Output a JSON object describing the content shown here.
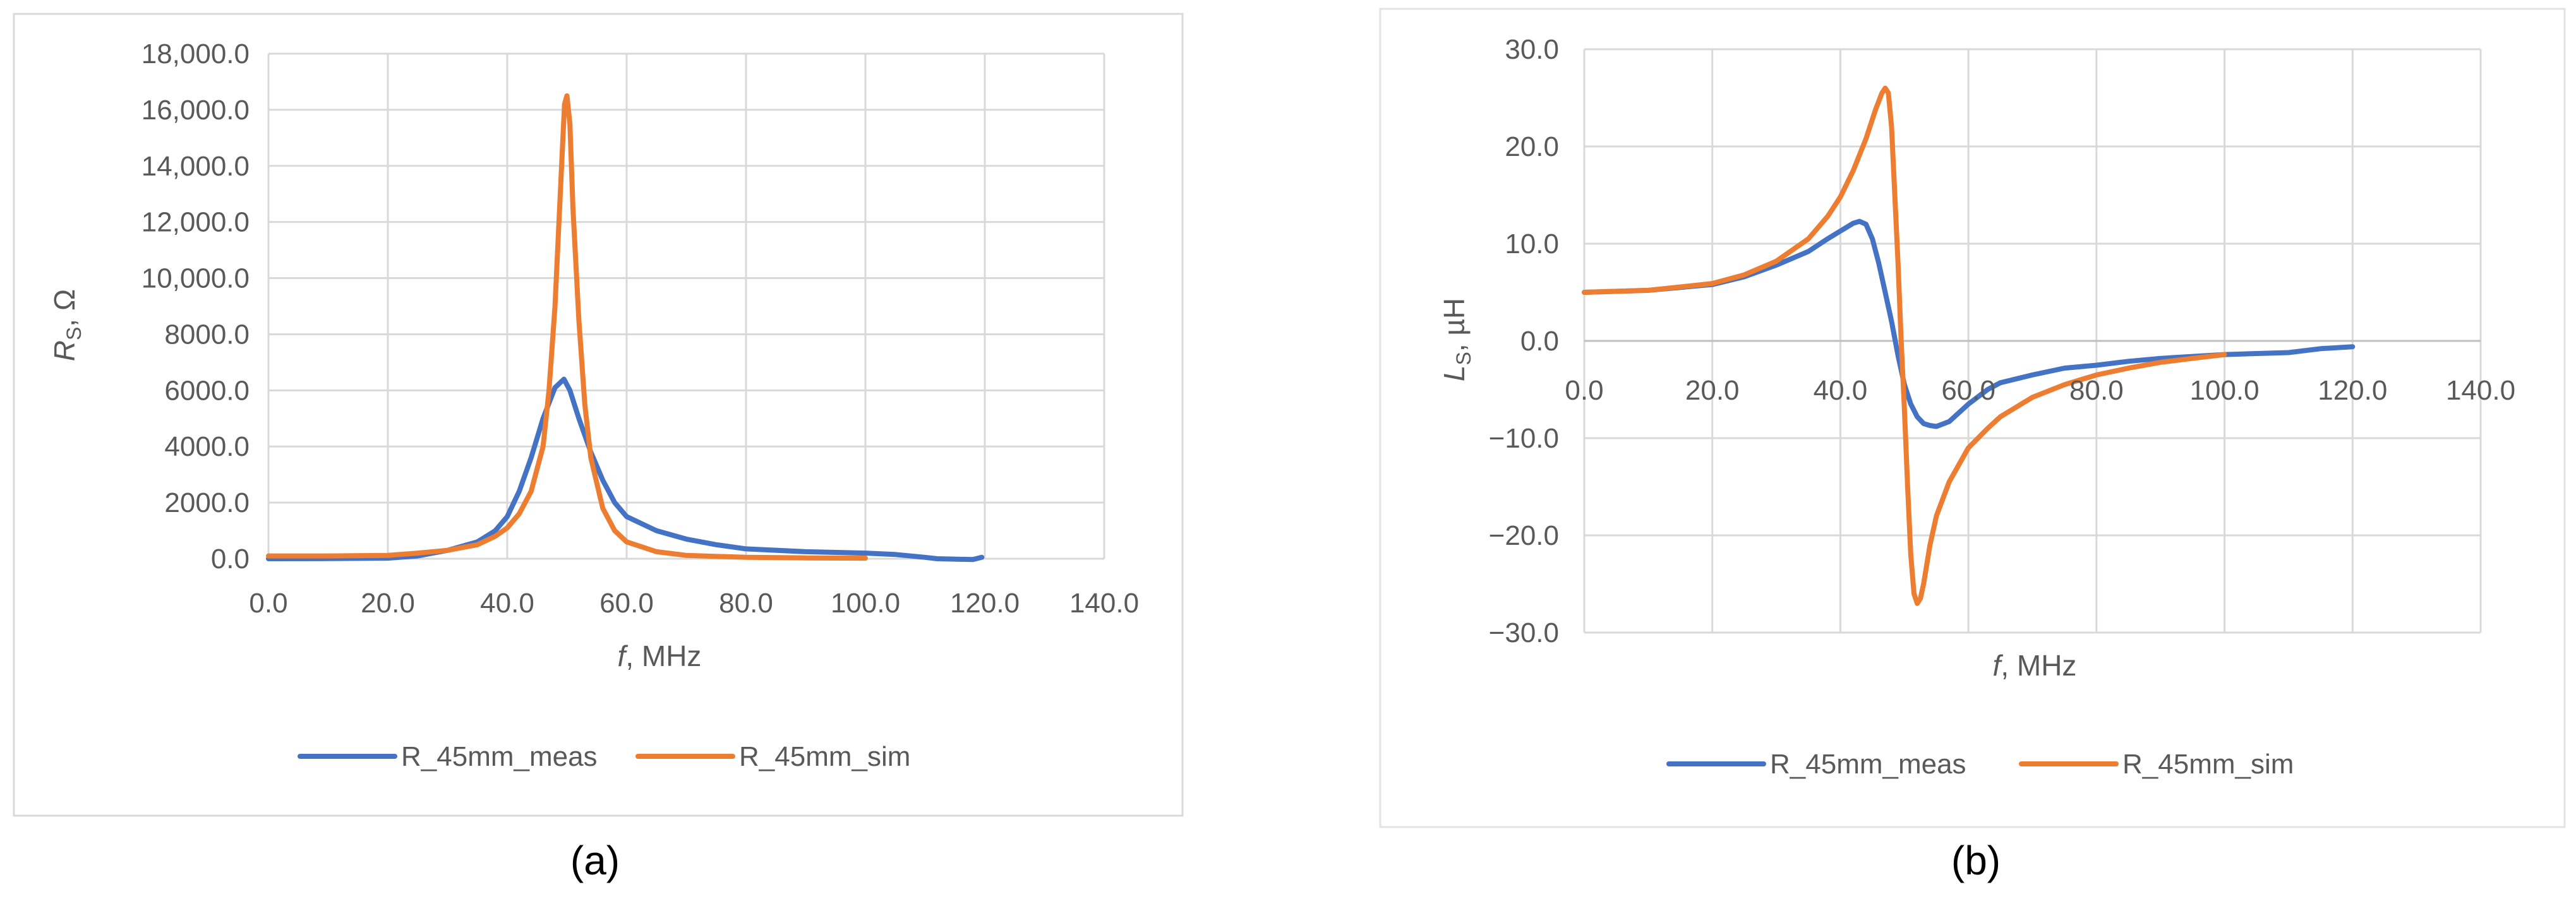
{
  "panels": [
    {
      "label": "(a)"
    },
    {
      "label": "(b)"
    }
  ],
  "chart_data": [
    {
      "type": "line",
      "panel": "(a)",
      "xlabel": "f, MHz",
      "ylabel_main": "R",
      "ylabel_sub": "S",
      "ylabel_unit": ", Ω",
      "xlim": [
        0,
        140
      ],
      "ylim": [
        0,
        18000
      ],
      "xticks": [
        0,
        20,
        40,
        60,
        80,
        100,
        120,
        140
      ],
      "xtick_labels": [
        "0.0",
        "20.0",
        "40.0",
        "60.0",
        "80.0",
        "100.0",
        "120.0",
        "140.0"
      ],
      "yticks": [
        0,
        2000,
        4000,
        6000,
        8000,
        10000,
        12000,
        14000,
        16000,
        18000
      ],
      "ytick_labels": [
        "0.0",
        "2000.0",
        "4000.0",
        "6000.0",
        "8000.0",
        "10,000.0",
        "12,000.0",
        "14,000.0",
        "16,000.0",
        "18,000.0"
      ],
      "grid": true,
      "legend_position": "bottom",
      "series": [
        {
          "name": "R_45mm_meas",
          "color": "#4472C4",
          "points": [
            [
              0,
              0
            ],
            [
              10,
              5
            ],
            [
              20,
              20
            ],
            [
              25,
              100
            ],
            [
              30,
              300
            ],
            [
              35,
              600
            ],
            [
              38,
              1000
            ],
            [
              40,
              1500
            ],
            [
              42,
              2400
            ],
            [
              44,
              3600
            ],
            [
              46,
              5000
            ],
            [
              48,
              6100
            ],
            [
              49.5,
              6400
            ],
            [
              50.5,
              6000
            ],
            [
              52,
              5000
            ],
            [
              54,
              3800
            ],
            [
              56,
              2800
            ],
            [
              58,
              2000
            ],
            [
              60,
              1500
            ],
            [
              65,
              1000
            ],
            [
              70,
              700
            ],
            [
              75,
              500
            ],
            [
              80,
              350
            ],
            [
              90,
              250
            ],
            [
              100,
              200
            ],
            [
              105,
              150
            ],
            [
              110,
              50
            ],
            [
              112,
              0
            ],
            [
              118,
              -30
            ],
            [
              119.5,
              50
            ]
          ]
        },
        {
          "name": "R_45mm_sim",
          "color": "#ED7D31",
          "points": [
            [
              0,
              100
            ],
            [
              10,
              100
            ],
            [
              20,
              120
            ],
            [
              25,
              200
            ],
            [
              30,
              300
            ],
            [
              35,
              500
            ],
            [
              38,
              800
            ],
            [
              40,
              1100
            ],
            [
              42,
              1600
            ],
            [
              44,
              2400
            ],
            [
              46,
              4000
            ],
            [
              47,
              6000
            ],
            [
              48,
              9000
            ],
            [
              49,
              13500
            ],
            [
              49.6,
              16200
            ],
            [
              50,
              16500
            ],
            [
              50.5,
              15500
            ],
            [
              51,
              12500
            ],
            [
              52,
              8500
            ],
            [
              53,
              5500
            ],
            [
              54,
              3600
            ],
            [
              56,
              1800
            ],
            [
              58,
              1000
            ],
            [
              60,
              600
            ],
            [
              65,
              250
            ],
            [
              70,
              120
            ],
            [
              80,
              50
            ],
            [
              90,
              30
            ],
            [
              100,
              20
            ]
          ]
        }
      ]
    },
    {
      "type": "line",
      "panel": "(b)",
      "xlabel": "f, MHz",
      "ylabel_main": "L",
      "ylabel_sub": "S",
      "ylabel_unit": ", µH",
      "xlim": [
        0,
        140
      ],
      "ylim": [
        -30,
        30
      ],
      "xticks": [
        0,
        20,
        40,
        60,
        80,
        100,
        120,
        140
      ],
      "xtick_labels": [
        "0.0",
        "20.0",
        "40.0",
        "60.0",
        "80.0",
        "100.0",
        "120.0",
        "140.0"
      ],
      "yticks": [
        -30,
        -20,
        -10,
        0,
        10,
        20,
        30
      ],
      "ytick_labels": [
        "−30.0",
        "−20.0",
        "−10.0",
        "0.0",
        "10.0",
        "20.0",
        "30.0"
      ],
      "grid": true,
      "legend_position": "bottom",
      "series": [
        {
          "name": "R_45mm_meas",
          "color": "#4472C4",
          "points": [
            [
              0,
              5
            ],
            [
              10,
              5.2
            ],
            [
              20,
              5.8
            ],
            [
              25,
              6.6
            ],
            [
              30,
              7.8
            ],
            [
              35,
              9.2
            ],
            [
              38,
              10.5
            ],
            [
              40,
              11.3
            ],
            [
              42,
              12.1
            ],
            [
              43,
              12.3
            ],
            [
              44,
              12
            ],
            [
              45,
              10.5
            ],
            [
              46,
              8
            ],
            [
              47,
              5
            ],
            [
              48,
              2
            ],
            [
              49,
              -1.5
            ],
            [
              50,
              -4.5
            ],
            [
              51,
              -6.5
            ],
            [
              52,
              -7.8
            ],
            [
              53,
              -8.5
            ],
            [
              54,
              -8.7
            ],
            [
              55,
              -8.8
            ],
            [
              57,
              -8.3
            ],
            [
              60,
              -6.5
            ],
            [
              63,
              -5
            ],
            [
              65,
              -4.3
            ],
            [
              70,
              -3.5
            ],
            [
              75,
              -2.8
            ],
            [
              80,
              -2.5
            ],
            [
              85,
              -2.1
            ],
            [
              90,
              -1.8
            ],
            [
              95,
              -1.6
            ],
            [
              100,
              -1.4
            ],
            [
              110,
              -1.2
            ],
            [
              115,
              -0.8
            ],
            [
              120,
              -0.6
            ]
          ]
        },
        {
          "name": "R_45mm_sim",
          "color": "#ED7D31",
          "points": [
            [
              0,
              5
            ],
            [
              10,
              5.2
            ],
            [
              20,
              5.9
            ],
            [
              25,
              6.8
            ],
            [
              30,
              8.2
            ],
            [
              35,
              10.5
            ],
            [
              38,
              12.8
            ],
            [
              40,
              14.8
            ],
            [
              42,
              17.5
            ],
            [
              44,
              20.8
            ],
            [
              45.5,
              23.8
            ],
            [
              46.5,
              25.5
            ],
            [
              47,
              26
            ],
            [
              47.5,
              25.5
            ],
            [
              48,
              22
            ],
            [
              48.5,
              15
            ],
            [
              49,
              8
            ],
            [
              49.5,
              0
            ],
            [
              50,
              -7
            ],
            [
              50.5,
              -15
            ],
            [
              51,
              -22
            ],
            [
              51.5,
              -26
            ],
            [
              52,
              -27
            ],
            [
              52.5,
              -26.5
            ],
            [
              53,
              -25
            ],
            [
              54,
              -21
            ],
            [
              55,
              -18
            ],
            [
              57,
              -14.5
            ],
            [
              60,
              -11
            ],
            [
              63,
              -9
            ],
            [
              65,
              -7.8
            ],
            [
              70,
              -5.8
            ],
            [
              75,
              -4.5
            ],
            [
              80,
              -3.5
            ],
            [
              85,
              -2.8
            ],
            [
              90,
              -2.2
            ],
            [
              95,
              -1.8
            ],
            [
              100,
              -1.4
            ]
          ]
        }
      ]
    }
  ]
}
